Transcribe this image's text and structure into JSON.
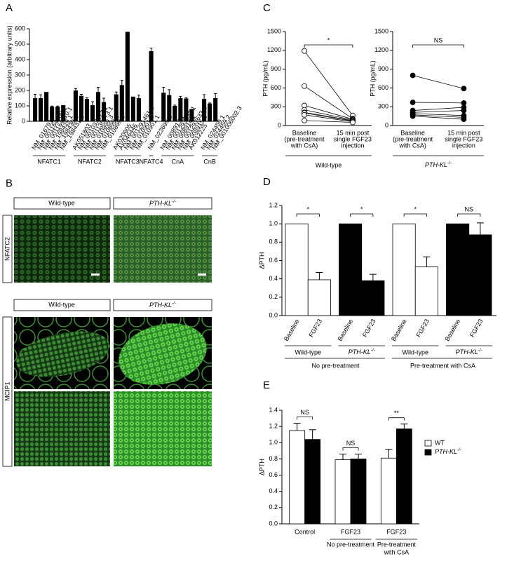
{
  "panel_labels": [
    "A",
    "B",
    "C",
    "D",
    "E"
  ],
  "micrographs": {
    "columns": [
      "Wild-type",
      {
        "text": "PTH-KL",
        "sup": "-/-"
      }
    ],
    "rows": [
      "NFATC2",
      "MCIP1"
    ]
  },
  "chart_data": [
    {
      "type": "grouped-bar",
      "ylabel": "Relative expression (arbitrary units)",
      "ylim": [
        0,
        600
      ],
      "yticks": [
        0,
        100,
        200,
        300,
        400,
        500,
        600
      ],
      "color": "#000000",
      "groups": [
        {
          "name": "NFATC1",
          "categories": [
            "NM_016791",
            "NM_001164109.1",
            "NM_001164110.1",
            "NM_198429.1",
            "NM_198430.1",
            "NM_198431.1"
          ],
          "values": [
            150,
            150,
            190,
            95,
            95,
            105
          ],
          "errors": [
            25,
            22,
            null,
            4,
            4,
            null
          ]
        },
        {
          "name": "NFATC2",
          "categories": [
            "AK051803",
            "NM_001037177.1",
            "NM_001136073.1",
            "NM_010899.3",
            "NM_010899.2",
            "NM_010899.1"
          ],
          "values": [
            200,
            165,
            145,
            105,
            190,
            125
          ],
          "errors": [
            12,
            10,
            8,
            22,
            30,
            25
          ]
        },
        {
          "name": "NFATC3",
          "categories": [
            "AK020605",
            "AK046446",
            "NM_001291461.1",
            "NM_010901.2",
            "NM_010901.1"
          ],
          "values": [
            175,
            235,
            580,
            160,
            150
          ],
          "errors": [
            15,
            30,
            null,
            null,
            20
          ]
        },
        {
          "name": "NFATC4",
          "categories": [
            "NM_023699.2"
          ],
          "values": [
            455
          ],
          "errors": [
            20
          ]
        },
        {
          "name": "CnA",
          "categories": [
            "NM_008913.1",
            "NM_001293632.1",
            "NM_008914.1",
            "NM_001293633.1",
            "NM_008915.2",
            "AK012225"
          ],
          "values": [
            185,
            170,
            100,
            150,
            148,
            80
          ],
          "errors": [
            35,
            35,
            5,
            12,
            5,
            null
          ]
        },
        {
          "name": "CnB",
          "categories": [
            "NM_024459.1",
            "NM_024459.2",
            "NM_001006002.3"
          ],
          "values": [
            145,
            115,
            150
          ],
          "errors": [
            28,
            4,
            30
          ]
        }
      ]
    },
    {
      "type": "paired",
      "ylabel": "PTH (pg/mL)",
      "ylim": [
        0,
        1500
      ],
      "yticks": [
        0,
        300,
        600,
        900,
        1200,
        1500
      ],
      "marker_fill": "#ffffff",
      "categories": [
        [
          "Baseline",
          "(pre-treatment",
          "with CsA)"
        ],
        [
          "15 min post",
          "single FGF23",
          "injection"
        ]
      ],
      "baseline": [
        1190,
        630,
        320,
        250,
        210,
        200,
        170,
        80
      ],
      "post": [
        160,
        110,
        100,
        90,
        80,
        70,
        60,
        50
      ],
      "significance": "*",
      "group": "Wild-type"
    },
    {
      "type": "paired",
      "ylabel": "PTH (pg/mL)",
      "ylim": [
        0,
        1500
      ],
      "yticks": [
        0,
        300,
        600,
        900,
        1200,
        1500
      ],
      "marker_fill": "#000000",
      "categories": [
        [
          "Baseline",
          "(pre-treatment",
          "with CsA)"
        ],
        [
          "15 min post",
          "single FGF23",
          "injection"
        ]
      ],
      "baseline": [
        800,
        370,
        240,
        210,
        190,
        170,
        150
      ],
      "post": [
        590,
        360,
        290,
        240,
        160,
        130,
        100
      ],
      "significance": "NS",
      "group": {
        "text": "PTH-KL",
        "sup": "-/-"
      }
    },
    {
      "type": "sectioned-bar",
      "ylabel": "ΔPTH",
      "ylim": [
        0,
        1.2
      ],
      "yticks": [
        {
          "value": 0,
          "label": "0.0"
        },
        0.2,
        0.4,
        0.6,
        0.8,
        {
          "value": 1,
          "label": "1.0"
        },
        1.2
      ],
      "sections": [
        {
          "name": "No pre-treatment",
          "groups": [
            {
              "name": "Wild-type",
              "color": "#ffffff",
              "categories": [
                "Baseline",
                "FGF23"
              ],
              "values": [
                1,
                0.39
              ],
              "errors": [
                null,
                0.08
              ],
              "significance": "*"
            },
            {
              "name": {
                "text": "PTH-KL",
                "sup": "-/-"
              },
              "color": "#000000",
              "categories": [
                "Baseline",
                "FGF23"
              ],
              "values": [
                1,
                0.38
              ],
              "errors": [
                null,
                0.07
              ],
              "significance": "*"
            }
          ]
        },
        {
          "name": "Pre-treatment with CsA",
          "groups": [
            {
              "name": "Wild-type",
              "color": "#ffffff",
              "categories": [
                "Baseline",
                "FGF23"
              ],
              "values": [
                1,
                0.53
              ],
              "errors": [
                null,
                0.11
              ],
              "significance": "*"
            },
            {
              "name": {
                "text": "PTH-KL",
                "sup": "-/-"
              },
              "color": "#000000",
              "categories": [
                "Baseline",
                "FGF23"
              ],
              "values": [
                1,
                0.88
              ],
              "errors": [
                null,
                0.13
              ],
              "significance": "NS"
            }
          ]
        }
      ]
    },
    {
      "type": "grouped-columns",
      "ylabel": "ΔPTH",
      "ylim": [
        0,
        1.4
      ],
      "yticks": [
        {
          "value": 0,
          "label": "0.0"
        },
        0.2,
        0.4,
        0.6,
        0.8,
        {
          "value": 1,
          "label": "1.0"
        },
        1.2,
        1.4
      ],
      "categories": [
        "Control",
        "FGF23",
        "FGF23"
      ],
      "sublabels": [
        null,
        [
          "No pre-treatment"
        ],
        [
          "Pre-treatment",
          "with CsA"
        ]
      ],
      "series": [
        {
          "name": "WT",
          "color": "#ffffff",
          "values": [
            1.15,
            0.79,
            0.81
          ],
          "errors": [
            0.09,
            0.07,
            0.11
          ]
        },
        {
          "name": {
            "text": "PTH-KL",
            "sup": "-/-"
          },
          "color": "#000000",
          "values": [
            1.04,
            0.8,
            1.17
          ],
          "errors": [
            0.12,
            0.06,
            0.06
          ]
        }
      ],
      "significance": [
        "NS",
        "NS",
        "**"
      ],
      "legend": "right"
    }
  ]
}
